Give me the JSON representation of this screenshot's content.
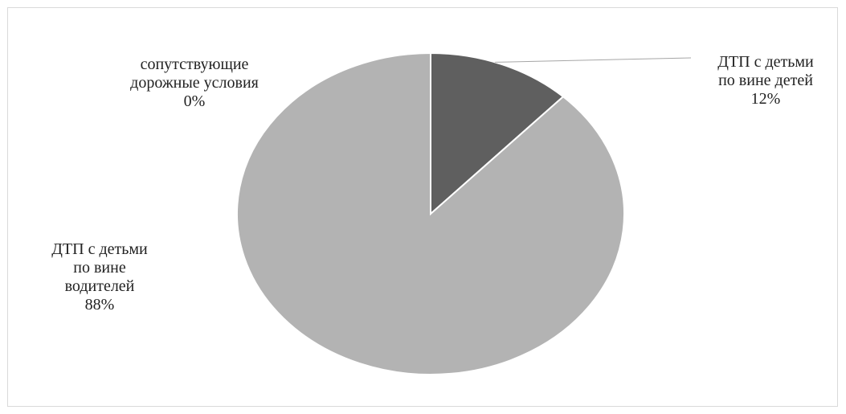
{
  "chart_data": {
    "type": "pie",
    "title": "",
    "slices": [
      {
        "lines": [
          "ДТП с детьми",
          "по вине детей"
        ],
        "percent_label": "12%",
        "value": 12,
        "color": "#5f5f5f"
      },
      {
        "lines": [
          "ДТП с детьми",
          "по вине",
          "водителей"
        ],
        "percent_label": "88%",
        "value": 88,
        "color": "#b3b3b3"
      },
      {
        "lines": [
          "сопутствующие",
          "дорожные условия"
        ],
        "percent_label": "0%",
        "value": 0,
        "color": "#9a9a9a"
      }
    ],
    "legend": "none"
  }
}
